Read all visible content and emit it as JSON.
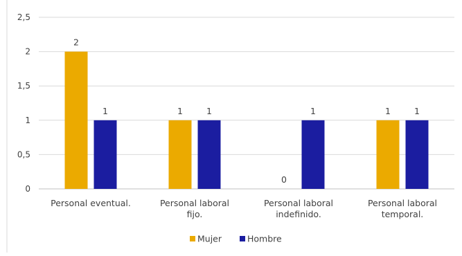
{
  "chart_data": {
    "type": "bar",
    "categories": [
      [
        "Personal eventual."
      ],
      [
        "Personal laboral",
        "fijo."
      ],
      [
        "Personal laboral",
        "indefinido."
      ],
      [
        "Personal laboral",
        "temporal."
      ]
    ],
    "series": [
      {
        "name": "Mujer",
        "color": "#EBAA00",
        "values": [
          2,
          1,
          0,
          1
        ]
      },
      {
        "name": "Hombre",
        "color": "#1B1DA0",
        "values": [
          1,
          1,
          1,
          1
        ]
      }
    ],
    "ylim": [
      0,
      2.5
    ],
    "yticks": [
      "0",
      "0,5",
      "1",
      "1,5",
      "2",
      "2,5"
    ],
    "ytick_values": [
      0,
      0.5,
      1,
      1.5,
      2,
      2.5
    ],
    "grid": true,
    "legend_position": "bottom",
    "data_labels": true
  }
}
